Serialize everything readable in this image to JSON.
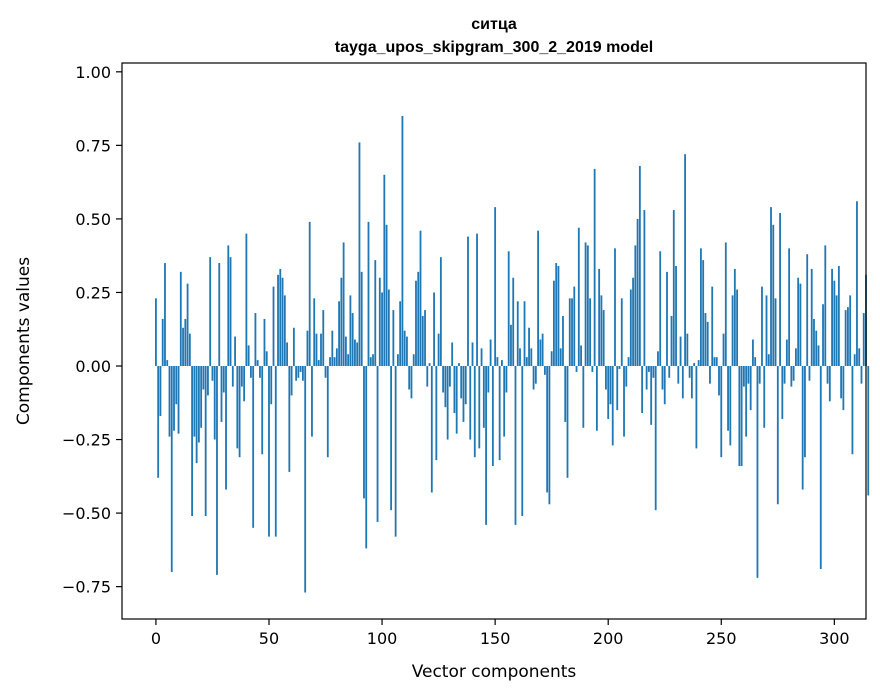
{
  "chart_data": {
    "type": "bar",
    "title_line1": "ситца",
    "title_line2": "tayga_upos_skipgram_300_2_2019 model",
    "xlabel": "Vector components",
    "ylabel": "Components values",
    "xlim": [
      -15,
      314
    ],
    "ylim": [
      -0.86,
      1.03
    ],
    "xticks": [
      0,
      50,
      100,
      150,
      200,
      250,
      300
    ],
    "xtick_labels": [
      "0",
      "50",
      "100",
      "150",
      "200",
      "250",
      "300"
    ],
    "yticks": [
      -0.75,
      -0.5,
      -0.25,
      0.0,
      0.25,
      0.5,
      0.75,
      1.0
    ],
    "ytick_labels": [
      "−0.75",
      "−0.50",
      "−0.25",
      "0.00",
      "0.25",
      "0.50",
      "0.75",
      "1.00"
    ],
    "bar_color": "#1f77b4",
    "grid": false,
    "values": [
      0.23,
      -0.38,
      -0.17,
      0.16,
      0.35,
      0.02,
      -0.24,
      -0.7,
      -0.22,
      -0.13,
      -0.23,
      0.32,
      0.13,
      0.16,
      0.28,
      0.11,
      -0.51,
      -0.24,
      -0.33,
      -0.26,
      -0.21,
      -0.08,
      -0.51,
      -0.1,
      0.37,
      -0.05,
      -0.25,
      -0.71,
      0.35,
      -0.19,
      -0.09,
      -0.42,
      0.41,
      0.37,
      -0.07,
      0.1,
      -0.28,
      -0.31,
      -0.07,
      -0.12,
      0.45,
      0.07,
      -0.04,
      -0.55,
      0.18,
      0.02,
      -0.04,
      -0.3,
      0.16,
      0.05,
      -0.58,
      -0.13,
      0.27,
      -0.58,
      0.31,
      0.33,
      0.3,
      0.24,
      0.08,
      -0.36,
      -0.1,
      0.13,
      -0.05,
      -0.04,
      -0.02,
      -0.05,
      -0.77,
      0.12,
      0.49,
      -0.24,
      0.23,
      0.11,
      0.02,
      0.11,
      0.19,
      -0.04,
      -0.31,
      0.03,
      0.12,
      0.03,
      0.06,
      0.22,
      0.3,
      0.42,
      0.1,
      0.04,
      0.24,
      0.18,
      0.09,
      0.08,
      0.76,
      0.32,
      -0.45,
      -0.62,
      0.49,
      0.03,
      0.04,
      0.36,
      -0.53,
      0.3,
      0.25,
      0.65,
      0.48,
      0.26,
      -0.49,
      0.19,
      -0.58,
      0.04,
      0.22,
      0.85,
      0.12,
      0.1,
      -0.08,
      -0.11,
      0.04,
      0.29,
      0.32,
      0.46,
      0.17,
      0.19,
      -0.07,
      0.01,
      -0.43,
      0.25,
      -0.32,
      0.11,
      0.37,
      -0.09,
      -0.14,
      -0.25,
      -0.07,
      0.08,
      -0.16,
      -0.23,
      0.01,
      -0.11,
      -0.19,
      -0.13,
      0.44,
      -0.25,
      0.08,
      -0.31,
      0.45,
      -0.28,
      0.06,
      -0.21,
      -0.54,
      -0.09,
      0.09,
      -0.34,
      0.54,
      0.03,
      -0.32,
      0.02,
      -0.24,
      -0.09,
      0.39,
      0.14,
      0.3,
      -0.54,
      0.22,
      0.06,
      -0.51,
      0.22,
      0.03,
      0.13,
      0.06,
      -0.08,
      -0.06,
      0.46,
      0.09,
      0.11,
      -0.03,
      -0.43,
      -0.47,
      0.05,
      0.29,
      0.35,
      0.34,
      0.06,
      0.17,
      -0.19,
      -0.38,
      0.23,
      0.23,
      0.27,
      -0.02,
      0.47,
      0.07,
      -0.21,
      0.42,
      0.41,
      0.23,
      -0.02,
      0.67,
      -0.22,
      0.33,
      0.24,
      0.19,
      -0.08,
      -0.18,
      -0.13,
      -0.27,
      0.4,
      -0.15,
      -0.01,
      0.23,
      -0.24,
      -0.07,
      0.03,
      0.26,
      0.3,
      0.41,
      0.5,
      0.68,
      -0.16,
      0.53,
      -0.08,
      -0.02,
      -0.2,
      -0.04,
      -0.49,
      0.05,
      0.39,
      -0.08,
      -0.13,
      0.32,
      -0.04,
      0.17,
      0.53,
      0.34,
      -0.06,
      0.1,
      -0.11,
      0.72,
      0.11,
      -0.04,
      -0.11,
      0.01,
      -0.28,
      0.02,
      0.4,
      0.36,
      0.18,
      0.15,
      -0.06,
      0.27,
      0.03,
      0.03,
      -0.1,
      -0.31,
      0.11,
      0.42,
      -0.22,
      -0.27,
      0.24,
      0.33,
      0.26,
      -0.34,
      -0.34,
      -0.07,
      -0.24,
      -0.06,
      -0.15,
      0.09,
      0.03,
      -0.72,
      -0.06,
      0.27,
      -0.21,
      0.24,
      0.04,
      0.54,
      0.48,
      0.23,
      -0.47,
      0.52,
      -0.18,
      -0.06,
      0.09,
      0.4,
      -0.07,
      -0.05,
      0.06,
      0.3,
      0.28,
      -0.42,
      -0.31,
      0.38,
      -0.05,
      0.33,
      0.16,
      0.12,
      0.07,
      -0.69,
      0.21,
      0.41,
      -0.06,
      -0.12,
      0.33,
      0.29,
      0.24,
      0.34,
      -0.11,
      -0.15,
      0.19,
      0.2,
      0.24,
      -0.3,
      0.04,
      0.56,
      0.06,
      -0.06,
      0.18,
      0.31,
      -0.44
    ]
  }
}
